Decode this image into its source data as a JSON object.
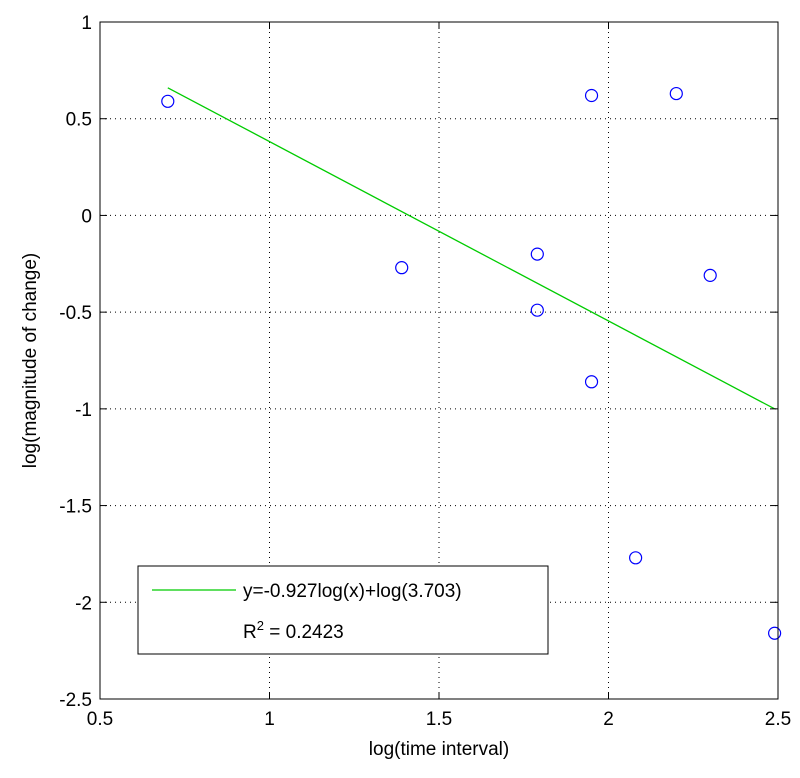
{
  "chart_data": {
    "type": "scatter",
    "xlabel": "log(time interval)",
    "ylabel": "log(magnitude of change)",
    "xlim": [
      0.5,
      2.5
    ],
    "ylim": [
      -2.5,
      1
    ],
    "x_ticks": [
      0.5,
      1,
      1.5,
      2,
      2.5
    ],
    "y_ticks": [
      -2.5,
      -2,
      -1.5,
      -1,
      -0.5,
      0,
      0.5,
      1
    ],
    "x_tick_labels": [
      "0.5",
      "1",
      "1.5",
      "2",
      "2.5"
    ],
    "y_tick_labels": [
      "-2.5",
      "-2",
      "-1.5",
      "-1",
      "-0.5",
      "0",
      "0.5",
      "1"
    ],
    "grid": true,
    "grid_style": "dotted",
    "colors": {
      "points": "#0000ff",
      "fit_line": "#00cc00",
      "axes": "#000000",
      "grid": "#000000"
    },
    "points": [
      {
        "x": 0.7,
        "y": 0.59
      },
      {
        "x": 1.39,
        "y": -0.27
      },
      {
        "x": 1.79,
        "y": -0.2
      },
      {
        "x": 1.79,
        "y": -0.49
      },
      {
        "x": 1.95,
        "y": 0.62
      },
      {
        "x": 1.95,
        "y": -0.86
      },
      {
        "x": 2.08,
        "y": -1.77
      },
      {
        "x": 2.2,
        "y": 0.63
      },
      {
        "x": 2.3,
        "y": -0.31
      },
      {
        "x": 2.49,
        "y": -2.16
      }
    ],
    "fit_line": {
      "x": [
        0.7,
        2.49
      ],
      "y": [
        0.66,
        -1.0
      ]
    },
    "legend": {
      "placement": "bottom-left",
      "line_label": "y=-0.927log(x)+log(3.703)",
      "r2_prefix": "R",
      "r2_sup": "2",
      "r2_value": " = 0.2423"
    }
  }
}
